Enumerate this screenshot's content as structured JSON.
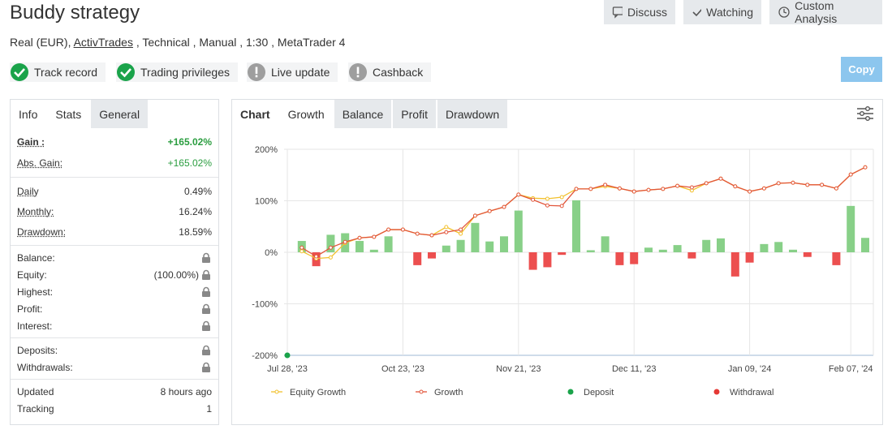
{
  "header": {
    "title": "Buddy strategy",
    "account_prefix": "Real (EUR), ",
    "broker": "ActivTrades",
    "account_rest": " , Technical , Manual , 1:30 , MetaTrader 4"
  },
  "buttons": [
    "Discuss",
    "Watching",
    "Custom Analysis"
  ],
  "badges": [
    {
      "label": "Track record",
      "status": "ok"
    },
    {
      "label": "Trading privileges",
      "status": "ok"
    },
    {
      "label": "Live update",
      "status": "warn"
    },
    {
      "label": "Cashback",
      "status": "warn"
    }
  ],
  "copy": "Copy",
  "left": {
    "tabs": [
      "Info",
      "Stats",
      "General"
    ],
    "groups": [
      [
        {
          "label": "Gain :",
          "value": "+165.02%"
        },
        {
          "label": "Abs. Gain:",
          "value": "+165.02%"
        }
      ],
      [
        {
          "label": "Daily",
          "value": "0.49%"
        },
        {
          "label": "Monthly:",
          "value": "16.24%"
        },
        {
          "label": "Drawdown:",
          "value": "18.59%"
        }
      ],
      [
        {
          "label": "Balance:",
          "locked": true
        },
        {
          "label": "Equity:",
          "value": "(100.00%)",
          "locked": true
        },
        {
          "label": "Highest:",
          "locked": true
        },
        {
          "label": "Profit:",
          "locked": true
        },
        {
          "label": "Interest:",
          "locked": true
        }
      ],
      [
        {
          "label": "Deposits:",
          "locked": true
        },
        {
          "label": "Withdrawals:",
          "locked": true
        }
      ],
      [
        {
          "label": "Updated",
          "value": "8 hours ago"
        },
        {
          "label": "Tracking",
          "value": "1"
        }
      ]
    ]
  },
  "right": {
    "tabs": [
      "Chart",
      "Growth",
      "Balance",
      "Profit",
      "Drawdown"
    ]
  },
  "chart_data": {
    "type": "line",
    "categories": [
      "Jul 28, '23",
      null,
      null,
      null,
      null,
      null,
      null,
      null,
      "Oct 23, '23",
      null,
      null,
      null,
      null,
      null,
      null,
      null,
      "Nov 21, '23",
      null,
      null,
      null,
      null,
      null,
      null,
      null,
      "Dec 11, '23",
      null,
      null,
      null,
      null,
      null,
      null,
      null,
      "Jan 09, '24",
      null,
      null,
      null,
      null,
      null,
      null,
      "Feb 07, '24",
      null
    ],
    "ylim": [
      -200,
      200
    ],
    "yticks": [
      {
        "value": 200,
        "label": "200%"
      },
      {
        "value": 100,
        "label": "100%"
      },
      {
        "value": 0,
        "label": "0%"
      },
      {
        "value": -100,
        "label": "-100%"
      },
      {
        "value": -200,
        "label": "-200%"
      }
    ],
    "grid": true,
    "series": [
      {
        "name": "Equity Growth",
        "type": "line",
        "color": "#f2c12e",
        "values": [
          null,
          2,
          -12,
          -10,
          18,
          28,
          30,
          44,
          44,
          36,
          33,
          49,
          36,
          71,
          80,
          88,
          112,
          105,
          104,
          107,
          123,
          123,
          128,
          124,
          118,
          121,
          123,
          129,
          120,
          134,
          143,
          128,
          118,
          124,
          134,
          135,
          131,
          131,
          124,
          151,
          165
        ]
      },
      {
        "name": "Growth",
        "type": "line",
        "color": "#e2553a",
        "values": [
          null,
          9,
          -8,
          9,
          20,
          28,
          30,
          44,
          44,
          36,
          33,
          39,
          44,
          71,
          80,
          88,
          112,
          102,
          91,
          90,
          123,
          123,
          131,
          124,
          118,
          121,
          123,
          129,
          126,
          134,
          143,
          128,
          118,
          124,
          134,
          135,
          131,
          131,
          124,
          151,
          165
        ]
      },
      {
        "name": "Deposit",
        "type": "scatter",
        "color": "#1aa34a",
        "values": [
          -200,
          null,
          null,
          null,
          null,
          null,
          null,
          null,
          null,
          null,
          null,
          null,
          null,
          null,
          null,
          null,
          null,
          null,
          null,
          null,
          null,
          null,
          null,
          null,
          null,
          null,
          null,
          null,
          null,
          null,
          null,
          null,
          null,
          null,
          null,
          null,
          null,
          null,
          null,
          null,
          null
        ]
      },
      {
        "name": "Withdrawal",
        "type": "scatter",
        "color": "#e53935",
        "values": [
          null,
          null,
          null,
          null,
          null,
          null,
          null,
          null,
          null,
          null,
          null,
          null,
          null,
          null,
          null,
          null,
          null,
          null,
          null,
          null,
          null,
          null,
          null,
          null,
          null,
          null,
          null,
          null,
          null,
          null,
          null,
          null,
          null,
          null,
          null,
          null,
          null,
          null,
          null,
          null,
          null
        ]
      }
    ],
    "bars": {
      "positive_color": "#88d088",
      "negative_color": "#ec4f4f",
      "values": [
        null,
        22,
        -27,
        34,
        37,
        22,
        5,
        31,
        0,
        -25,
        -12,
        13,
        24,
        57,
        21,
        31,
        81,
        -34,
        -29,
        -5,
        101,
        4,
        31,
        -25,
        -23,
        9,
        5,
        14,
        -12,
        24,
        27,
        -47,
        -20,
        16,
        20,
        5,
        -9,
        0,
        -25,
        90,
        28
      ]
    }
  }
}
